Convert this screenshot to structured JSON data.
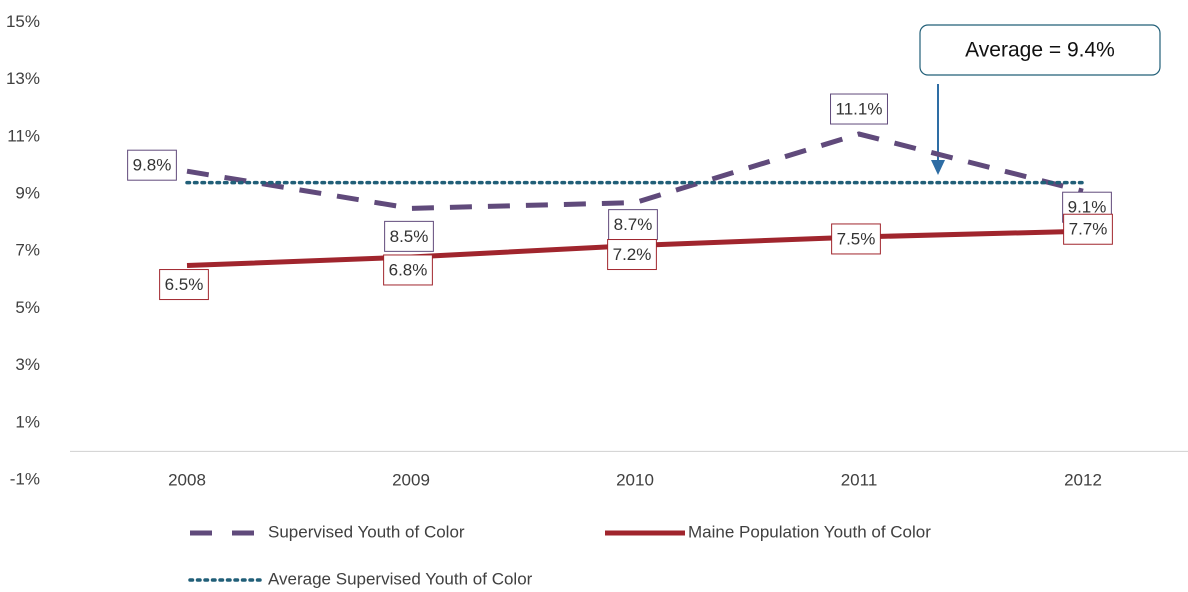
{
  "chart_data": {
    "type": "line",
    "categories": [
      "2008",
      "2009",
      "2010",
      "2011",
      "2012"
    ],
    "series": [
      {
        "name": "Supervised Youth of Color",
        "color": "#604a7b",
        "style": "dashed",
        "values": [
          9.8,
          8.5,
          8.7,
          11.1,
          9.1
        ],
        "value_labels": [
          "9.8%",
          "8.5%",
          "8.7%",
          "11.1%",
          "9.1%"
        ]
      },
      {
        "name": "Maine Population Youth of Color",
        "color": "#a0252d",
        "style": "solid",
        "values": [
          6.5,
          6.8,
          7.2,
          7.5,
          7.7
        ],
        "value_labels": [
          "6.5%",
          "6.8%",
          "7.2%",
          "7.5%",
          "7.7%"
        ]
      },
      {
        "name": "Average Supervised Youth of Color",
        "color": "#215f78",
        "style": "dotted",
        "values": [
          9.4,
          9.4,
          9.4,
          9.4,
          9.4
        ]
      }
    ],
    "annotation": "Average = 9.4%",
    "ylim": [
      -1,
      15
    ],
    "yticks": [
      {
        "value": -1,
        "label": "-1%"
      },
      {
        "value": 1,
        "label": "1%"
      },
      {
        "value": 3,
        "label": "3%"
      },
      {
        "value": 5,
        "label": "5%"
      },
      {
        "value": 7,
        "label": "7%"
      },
      {
        "value": 9,
        "label": "9%"
      },
      {
        "value": 11,
        "label": "11%"
      },
      {
        "value": 13,
        "label": "13%"
      },
      {
        "value": 15,
        "label": "15%"
      }
    ],
    "grid": false
  }
}
